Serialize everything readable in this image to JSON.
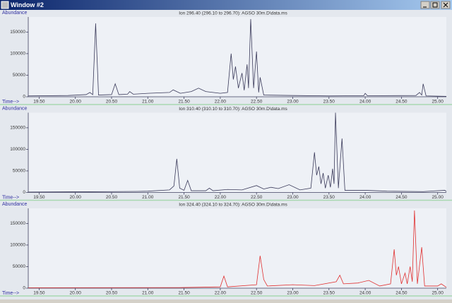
{
  "window": {
    "title": "Window #2"
  },
  "chart_data": [
    {
      "type": "line",
      "title": "Ion 296.40 (296.10 to 296.70): AGSO 30m.D\\data.ms",
      "y_label": "Abundance",
      "x_label": "Time-->",
      "color": "#3a3a5a",
      "x": [
        19.35,
        19.9,
        20.15,
        20.2,
        20.24,
        20.28,
        20.32,
        20.5,
        20.55,
        20.6,
        20.72,
        20.75,
        20.8,
        21.0,
        21.3,
        21.35,
        21.45,
        21.6,
        21.7,
        21.8,
        22.0,
        22.1,
        22.15,
        22.18,
        22.21,
        22.25,
        22.3,
        22.33,
        22.37,
        22.39,
        22.42,
        22.46,
        22.5,
        22.53,
        22.55,
        22.6,
        23.0,
        23.5,
        23.98,
        24.0,
        24.03,
        24.7,
        24.75,
        24.78,
        24.8,
        24.84,
        25.12
      ],
      "values": [
        2000,
        3000,
        5000,
        10000,
        5000,
        170000,
        4000,
        5000,
        30000,
        5000,
        6000,
        12000,
        6000,
        8000,
        10000,
        16000,
        8000,
        12000,
        20000,
        12000,
        8000,
        10000,
        100000,
        40000,
        70000,
        20000,
        55000,
        15000,
        75000,
        20000,
        180000,
        20000,
        105000,
        10000,
        45000,
        4000,
        3000,
        2000,
        2500,
        8000,
        2500,
        3000,
        10000,
        4000,
        30000,
        2000,
        1000
      ],
      "xlim": [
        19.35,
        25.12
      ],
      "ylim": [
        0,
        185000
      ],
      "xticks": [
        {
          "value": 19.5,
          "label": "19.50"
        },
        {
          "value": 20,
          "label": "20.00"
        },
        {
          "value": 20.5,
          "label": "20.50"
        },
        {
          "value": 21,
          "label": "21.00"
        },
        {
          "value": 21.5,
          "label": "21.50"
        },
        {
          "value": 22,
          "label": "22.00"
        },
        {
          "value": 22.5,
          "label": "22.50"
        },
        {
          "value": 23,
          "label": "23.00"
        },
        {
          "value": 23.5,
          "label": "23.50"
        },
        {
          "value": 24,
          "label": "24.00"
        },
        {
          "value": 24.5,
          "label": "24.50"
        },
        {
          "value": 25,
          "label": "25.00"
        }
      ],
      "yticks": [
        0,
        50000,
        100000,
        150000
      ]
    },
    {
      "type": "line",
      "title": "Ion 310.40 (310.10 to 310.70): AGSO 30m.D\\data.ms",
      "y_label": "Abundance",
      "x_label": "Time-->",
      "color": "#3a3a5a",
      "x": [
        19.35,
        20.5,
        20.85,
        21.0,
        21.3,
        21.36,
        21.4,
        21.44,
        21.5,
        21.55,
        21.6,
        21.8,
        21.85,
        21.9,
        22.1,
        22.3,
        22.5,
        22.6,
        22.7,
        22.8,
        22.95,
        23.1,
        23.25,
        23.3,
        23.33,
        23.36,
        23.39,
        23.42,
        23.45,
        23.49,
        23.52,
        23.55,
        23.57,
        23.59,
        23.63,
        23.68,
        23.72,
        24.0,
        24.3,
        24.8,
        25.1,
        25.12
      ],
      "values": [
        1000,
        2000,
        2500,
        3000,
        6000,
        15000,
        78000,
        10000,
        5000,
        28000,
        4000,
        4000,
        10000,
        4000,
        7000,
        6000,
        16000,
        8000,
        12000,
        9000,
        18000,
        6000,
        10000,
        93000,
        40000,
        60000,
        20000,
        45000,
        10000,
        40000,
        12000,
        55000,
        20000,
        185000,
        10000,
        125000,
        5000,
        5000,
        3000,
        2000,
        5000,
        2000
      ],
      "xlim": [
        19.35,
        25.12
      ],
      "ylim": [
        0,
        185000
      ],
      "xticks": [
        {
          "value": 19.5,
          "label": "19.50"
        },
        {
          "value": 20,
          "label": "20.00"
        },
        {
          "value": 20.5,
          "label": "20.50"
        },
        {
          "value": 21,
          "label": "21.00"
        },
        {
          "value": 21.5,
          "label": "21.50"
        },
        {
          "value": 22,
          "label": "22.00"
        },
        {
          "value": 22.5,
          "label": "22.50"
        },
        {
          "value": 23,
          "label": "23.00"
        },
        {
          "value": 23.5,
          "label": "23.50"
        },
        {
          "value": 24,
          "label": "24.00"
        },
        {
          "value": 24.5,
          "label": "24.50"
        },
        {
          "value": 25,
          "label": "25.00"
        }
      ],
      "yticks": [
        0,
        50000,
        100000,
        150000
      ]
    },
    {
      "type": "line",
      "title": "Ion 324.40 (324.10 to 324.70): AGSO 30m.D\\data.ms",
      "y_label": "Abundance",
      "x_label": "Time-->",
      "color": "#e03030",
      "x": [
        19.35,
        21.5,
        22.0,
        22.05,
        22.1,
        22.5,
        22.55,
        22.6,
        22.65,
        23.0,
        23.3,
        23.6,
        23.65,
        23.7,
        23.9,
        24.05,
        24.2,
        24.35,
        24.4,
        24.43,
        24.46,
        24.5,
        24.55,
        24.58,
        24.62,
        24.65,
        24.68,
        24.72,
        24.78,
        24.82,
        25.0,
        25.05,
        25.12
      ],
      "values": [
        1000,
        1500,
        3000,
        28000,
        3000,
        8000,
        75000,
        20000,
        5000,
        8000,
        6000,
        15000,
        30000,
        10000,
        12000,
        18000,
        5000,
        10000,
        90000,
        30000,
        50000,
        10000,
        35000,
        10000,
        50000,
        15000,
        180000,
        10000,
        95000,
        5000,
        5000,
        10000,
        2000
      ],
      "xlim": [
        19.35,
        25.12
      ],
      "ylim": [
        0,
        185000
      ],
      "xticks": [
        {
          "value": 19.5,
          "label": "19.50"
        },
        {
          "value": 20,
          "label": "20.00"
        },
        {
          "value": 20.5,
          "label": "20.50"
        },
        {
          "value": 21,
          "label": "21.00"
        },
        {
          "value": 21.5,
          "label": "21.50"
        },
        {
          "value": 22,
          "label": "22.00"
        },
        {
          "value": 22.5,
          "label": "22.50"
        },
        {
          "value": 23,
          "label": "23.00"
        },
        {
          "value": 23.5,
          "label": "23.50"
        },
        {
          "value": 24,
          "label": "24.00"
        },
        {
          "value": 24.5,
          "label": "24.50"
        },
        {
          "value": 25,
          "label": "25.00"
        }
      ],
      "yticks": [
        0,
        50000,
        100000,
        150000
      ]
    }
  ]
}
